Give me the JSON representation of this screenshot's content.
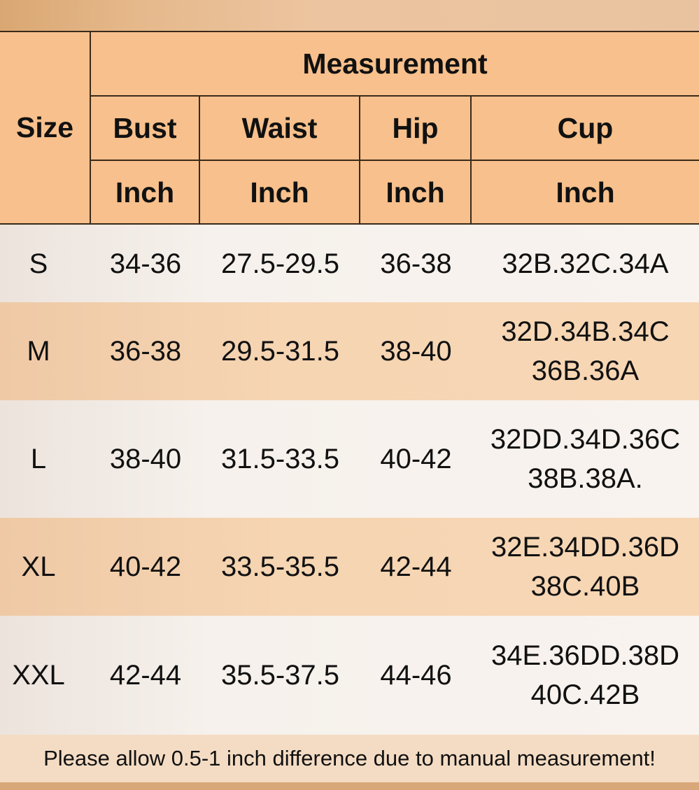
{
  "header": {
    "size": "Size",
    "group": "Measurement",
    "columns": [
      {
        "label": "Bust",
        "unit": "Inch"
      },
      {
        "label": "Waist",
        "unit": "Inch"
      },
      {
        "label": "Hip",
        "unit": "Inch"
      },
      {
        "label": "Cup",
        "unit": "Inch"
      }
    ]
  },
  "rows": [
    {
      "size": "S",
      "bust": "34-36",
      "waist": "27.5-29.5",
      "hip": "36-38",
      "cup": [
        "32B.32C.34A"
      ]
    },
    {
      "size": "M",
      "bust": "36-38",
      "waist": "29.5-31.5",
      "hip": "38-40",
      "cup": [
        "32D.34B.34C",
        "36B.36A"
      ]
    },
    {
      "size": "L",
      "bust": "38-40",
      "waist": "31.5-33.5",
      "hip": "40-42",
      "cup": [
        "32DD.34D.36C",
        "38B.38A."
      ]
    },
    {
      "size": "XL",
      "bust": "40-42",
      "waist": "33.5-35.5",
      "hip": "42-44",
      "cup": [
        "32E.34DD.36D",
        "38C.40B"
      ]
    },
    {
      "size": "XXL",
      "bust": "42-44",
      "waist": "35.5-37.5",
      "hip": "44-46",
      "cup": [
        "34E.36DD.38D",
        "40C.42B"
      ]
    }
  ],
  "note": "Please allow 0.5-1 inch difference due to manual measurement!",
  "colors": {
    "header": "#f7c08c",
    "row_light": "#f6f1ec",
    "row_tan": "#f6d5b3",
    "border": "#3a2a1a"
  }
}
